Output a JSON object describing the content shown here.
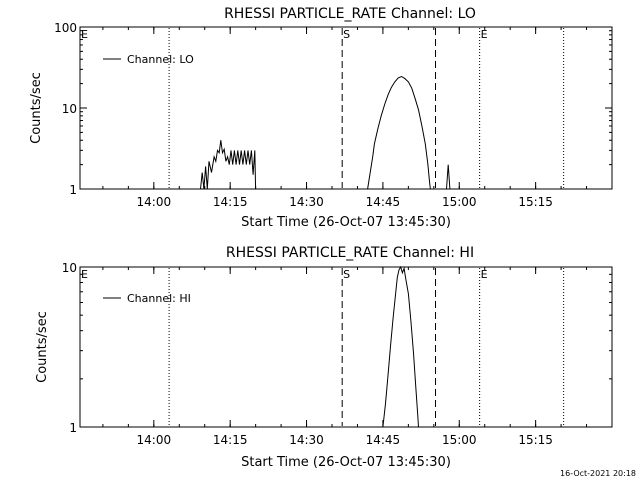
{
  "footer": {
    "timestamp": "16-Oct-2021 20:18"
  },
  "chart_data": [
    {
      "type": "line",
      "title": "RHESSI PARTICLE_RATE Channel: LO",
      "xlabel": "Start Time (26-Oct-07 13:45:30)",
      "ylabel": "Counts/sec",
      "yscale": "log",
      "xlim": [
        "13:45:30",
        "15:30:00"
      ],
      "ylim": [
        1,
        100
      ],
      "xticks": [
        "14:00",
        "14:15",
        "14:30",
        "14:45",
        "15:00",
        "15:15"
      ],
      "yticks": [
        "1",
        "10",
        "100"
      ],
      "legend": {
        "position": "top-left",
        "entries": [
          "Channel: LO"
        ]
      },
      "markers": [
        {
          "label": "E",
          "time": "13:45:30",
          "style": "dotted"
        },
        {
          "label": "",
          "time": "14:03:00",
          "style": "dotted"
        },
        {
          "label": "S",
          "time": "14:37:00",
          "style": "dashed"
        },
        {
          "label": "",
          "time": "14:55:20",
          "style": "dashed"
        },
        {
          "label": "E",
          "time": "15:04:00",
          "style": "dotted"
        },
        {
          "label": "",
          "time": "15:20:30",
          "style": "dotted"
        }
      ],
      "series": [
        {
          "name": "Channel: LO",
          "segments": [
            [
              [
                "14:09:10",
                1.0
              ],
              [
                "14:09:30",
                1.6
              ],
              [
                "14:09:50",
                1.0
              ],
              [
                "14:10:10",
                1.9
              ],
              [
                "14:10:30",
                1.0
              ],
              [
                "14:10:50",
                2.2
              ],
              [
                "14:11:20",
                1.6
              ],
              [
                "14:11:50",
                2.5
              ],
              [
                "14:12:10",
                2.2
              ],
              [
                "14:12:30",
                3.0
              ],
              [
                "14:12:50",
                2.8
              ],
              [
                "14:13:10",
                4.0
              ],
              [
                "14:13:30",
                2.8
              ],
              [
                "14:13:50",
                3.1
              ],
              [
                "14:14:10",
                2.2
              ],
              [
                "14:14:30",
                2.5
              ],
              [
                "14:14:50",
                2.0
              ],
              [
                "14:15:10",
                3.0
              ],
              [
                "14:15:30",
                2.0
              ],
              [
                "14:15:50",
                3.0
              ],
              [
                "14:16:10",
                2.0
              ],
              [
                "14:16:30",
                3.0
              ],
              [
                "14:16:50",
                2.0
              ],
              [
                "14:17:10",
                3.0
              ],
              [
                "14:17:30",
                2.0
              ],
              [
                "14:17:50",
                3.0
              ],
              [
                "14:18:10",
                2.0
              ],
              [
                "14:18:30",
                3.0
              ],
              [
                "14:18:50",
                2.0
              ],
              [
                "14:19:10",
                3.0
              ],
              [
                "14:19:30",
                1.5
              ],
              [
                "14:19:50",
                3.0
              ],
              [
                "14:20:00",
                1.0
              ]
            ],
            [
              [
                "14:42:00",
                1.0
              ],
              [
                "14:42:30",
                1.6
              ],
              [
                "14:43:00",
                2.5
              ],
              [
                "14:43:20",
                3.6
              ],
              [
                "14:44:00",
                5.5
              ],
              [
                "14:44:40",
                8.0
              ],
              [
                "14:45:20",
                11.0
              ],
              [
                "14:46:00",
                14.5
              ],
              [
                "14:46:40",
                18.0
              ],
              [
                "14:47:20",
                21.0
              ],
              [
                "14:48:00",
                23.5
              ],
              [
                "14:48:40",
                24.5
              ],
              [
                "14:49:20",
                23.0
              ],
              [
                "14:50:00",
                21.0
              ],
              [
                "14:50:40",
                17.5
              ],
              [
                "14:51:20",
                13.0
              ],
              [
                "14:52:00",
                9.5
              ],
              [
                "14:52:40",
                6.0
              ],
              [
                "14:53:20",
                3.6
              ],
              [
                "14:53:50",
                2.0
              ],
              [
                "14:54:10",
                1.2
              ],
              [
                "14:54:20",
                1.0
              ]
            ],
            [
              [
                "14:57:30",
                1.0
              ],
              [
                "14:57:50",
                2.0
              ],
              [
                "14:58:10",
                1.0
              ]
            ]
          ]
        }
      ]
    },
    {
      "type": "line",
      "title": "RHESSI PARTICLE_RATE Channel: HI",
      "xlabel": "Start Time (26-Oct-07 13:45:30)",
      "ylabel": "Counts/sec",
      "yscale": "log",
      "xlim": [
        "13:45:30",
        "15:30:00"
      ],
      "ylim": [
        1,
        10
      ],
      "xticks": [
        "14:00",
        "14:15",
        "14:30",
        "14:45",
        "15:00",
        "15:15"
      ],
      "yticks": [
        "1",
        "10"
      ],
      "legend": {
        "position": "top-left",
        "entries": [
          "Channel: HI"
        ]
      },
      "markers": [
        {
          "label": "E",
          "time": "13:45:30",
          "style": "dotted"
        },
        {
          "label": "",
          "time": "14:03:00",
          "style": "dotted"
        },
        {
          "label": "S",
          "time": "14:37:00",
          "style": "dashed"
        },
        {
          "label": "",
          "time": "14:55:20",
          "style": "dashed"
        },
        {
          "label": "E",
          "time": "15:04:00",
          "style": "dotted"
        },
        {
          "label": "",
          "time": "15:20:30",
          "style": "dotted"
        }
      ],
      "series": [
        {
          "name": "Channel: HI",
          "segments": [
            [
              [
                "14:45:00",
                1.0
              ],
              [
                "14:45:30",
                1.4
              ],
              [
                "14:46:00",
                2.1
              ],
              [
                "14:46:30",
                3.2
              ],
              [
                "14:47:00",
                4.8
              ],
              [
                "14:47:30",
                6.8
              ],
              [
                "14:47:50",
                8.6
              ],
              [
                "14:48:10",
                9.6
              ],
              [
                "14:48:30",
                10.0
              ],
              [
                "14:48:50",
                9.2
              ],
              [
                "14:49:10",
                9.8
              ],
              [
                "14:49:30",
                8.4
              ],
              [
                "14:50:00",
                6.8
              ],
              [
                "14:50:30",
                4.6
              ],
              [
                "14:51:00",
                2.9
              ],
              [
                "14:51:30",
                1.7
              ],
              [
                "14:51:50",
                1.2
              ],
              [
                "14:52:00",
                1.0
              ]
            ]
          ]
        }
      ]
    }
  ]
}
